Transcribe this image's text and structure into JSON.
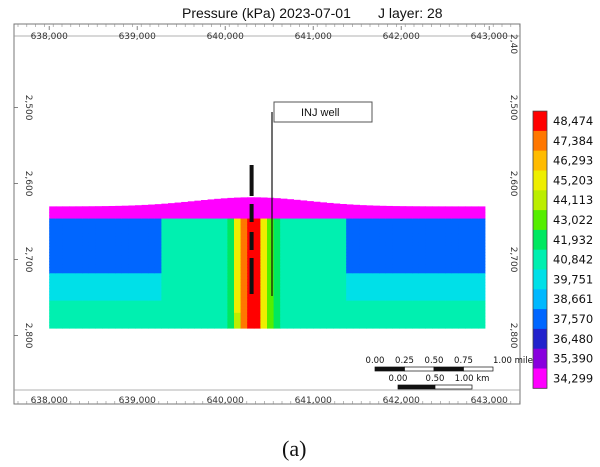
{
  "chart_data": {
    "type": "heatmap",
    "title": "Pressure (kPa) 2023-07-01",
    "layer_label": "J layer: 28",
    "caption": "(a)",
    "x_ticks": [
      "638,000",
      "639,000",
      "640,000",
      "641,000",
      "642,000",
      "643,000"
    ],
    "x_range": [
      637600,
      643350
    ],
    "y_ticks": [
      "2,500",
      "2,600",
      "2,700",
      "2,800"
    ],
    "y_range": [
      2390,
      2890
    ],
    "top_right_label": "2,40",
    "colorbar": {
      "labels": [
        "48,474",
        "47,384",
        "46,293",
        "45,203",
        "44,113",
        "43,022",
        "41,932",
        "40,842",
        "39,751",
        "38,661",
        "37,570",
        "36,480",
        "35,390",
        "34,299"
      ],
      "colors": [
        "#ff0000",
        "#ff7700",
        "#ffbb00",
        "#eeee00",
        "#bbee00",
        "#55ee00",
        "#00e860",
        "#00f0b0",
        "#00e0e8",
        "#00b8ff",
        "#0066ff",
        "#2222cc",
        "#8800dd",
        "#ff00ff"
      ],
      "min": 34299,
      "max": 48474
    },
    "well": {
      "label": "INJ well",
      "x": 640300
    },
    "scale_bar": {
      "mile_labels": [
        "0.00",
        "0.25",
        "0.50",
        "0.75",
        "1.00 mile"
      ],
      "km_labels": [
        "0.00",
        "0.50",
        "1.00 km"
      ]
    },
    "field": {
      "x_range": [
        638000,
        642950
      ],
      "top_depth": 2630,
      "bottom_depth": 2790,
      "top_layer_pressure": 34299,
      "deep_pressure": 37570,
      "base_pressure": 40842,
      "well_pressure": 48474
    }
  }
}
